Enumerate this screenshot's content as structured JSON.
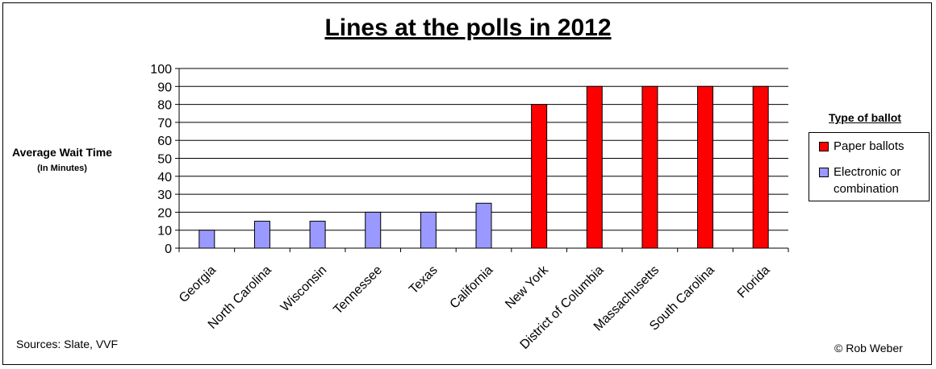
{
  "chart_data": {
    "type": "bar",
    "title": "Lines at the polls in 2012",
    "ylabel": "Average Wait Time",
    "ylabel_sub": "(In Minutes)",
    "xlabel": "",
    "ylim": [
      0,
      100
    ],
    "yticks": [
      0,
      10,
      20,
      30,
      40,
      50,
      60,
      70,
      80,
      90,
      100
    ],
    "grid": true,
    "legend_title": "Type of ballot",
    "legend_position": "right",
    "categories": [
      "Georgia",
      "North Carolina",
      "Wisconsin",
      "Tennessee",
      "Texas",
      "California",
      "New York",
      "District of Columbia",
      "Massachusetts",
      "South Carolina",
      "Florida"
    ],
    "series": [
      {
        "name": "Paper ballots",
        "color": "#ff0000",
        "values": [
          null,
          null,
          null,
          null,
          null,
          null,
          80,
          90,
          90,
          90,
          90
        ]
      },
      {
        "name": "Electronic or combination",
        "color": "#9999ff",
        "values": [
          10,
          15,
          15,
          20,
          20,
          25,
          null,
          null,
          null,
          null,
          null
        ]
      }
    ]
  },
  "footer": {
    "sources": "Sources: Slate, VVF",
    "credit": "Rob Weber",
    "credit_icon": "copyright-icon"
  }
}
